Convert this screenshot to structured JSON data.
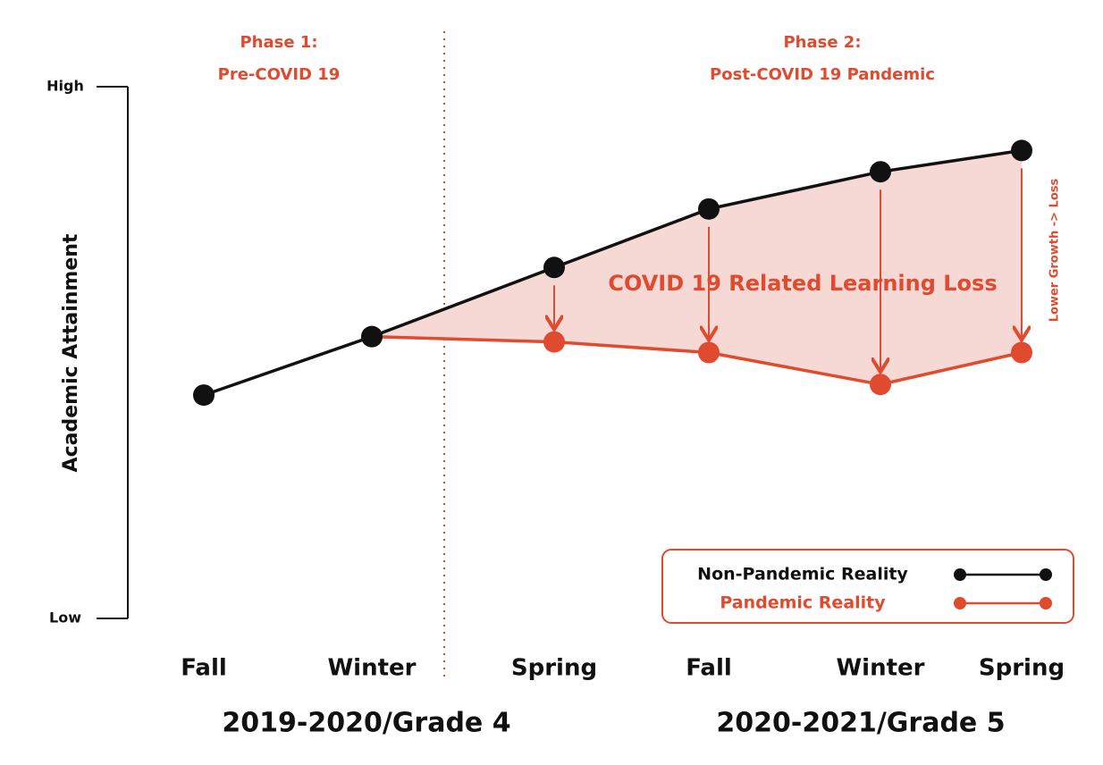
{
  "chart_data": {
    "type": "line",
    "y_axis_label": "Academic Attainment",
    "categories": [
      "Fall",
      "Winter",
      "Spring",
      "Fall",
      "Winter",
      "Spring"
    ],
    "x_group_labels": [
      "2019-2020/Grade 4",
      "2020-2021/Grade 5"
    ],
    "phase_labels": [
      [
        "Phase 1:",
        "Pre-COVID 19"
      ],
      [
        "Phase 2:",
        "Post-COVID 19 Pandemic"
      ]
    ],
    "annotations": [
      "COVID 19 Related Learning Loss",
      "Lower Growth -> Loss"
    ],
    "ylim": [
      0,
      100
    ],
    "yticks": [
      {
        "value": 0,
        "label": "Low"
      },
      {
        "value": 100,
        "label": "High"
      }
    ],
    "series": [
      {
        "name": "Non-Pandemic Reality",
        "color": "#111111",
        "values": [
          42,
          53,
          66,
          77,
          84,
          88
        ]
      },
      {
        "name": "Pandemic Reality",
        "color": "#e04a2f",
        "values": [
          null,
          53,
          52,
          50,
          44,
          50
        ]
      }
    ],
    "fill_color": "#f6d9d4",
    "legend": "lower right"
  }
}
